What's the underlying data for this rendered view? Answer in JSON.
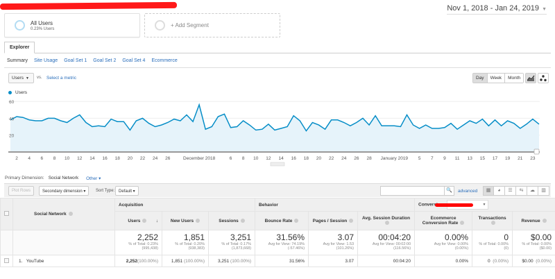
{
  "header": {
    "date_range": "Nov 1, 2018 - Jan 24, 2019",
    "date_caret": "▼"
  },
  "segments": [
    {
      "title": "All Users",
      "subtitle": "0.23% Users"
    },
    {
      "title": "+ Add Segment"
    }
  ],
  "tabs": {
    "explorer": "Explorer"
  },
  "subtabs": [
    "Summary",
    "Site Usage",
    "Goal Set 1",
    "Goal Set 2",
    "Goal Set 4",
    "Ecommerce"
  ],
  "chart_controls": {
    "metric": "Users",
    "metric_caret": "▼",
    "vs": "vs.",
    "select_metric": "Select a metric",
    "legend": "Users",
    "granularity": [
      "Day",
      "Week",
      "Month"
    ],
    "active_granularity": "Day"
  },
  "chart_data": {
    "type": "area",
    "title": "",
    "series": [
      {
        "name": "Users",
        "color": "#058dc7",
        "values": [
          38,
          42,
          41,
          38,
          37,
          37,
          40,
          40,
          37,
          35,
          40,
          44,
          35,
          30,
          31,
          30,
          39,
          36,
          36,
          26,
          37,
          40,
          34,
          30,
          32,
          35,
          39,
          37,
          44,
          36,
          56,
          27,
          30,
          42,
          45,
          29,
          30,
          37,
          32,
          26,
          27,
          33,
          26,
          28,
          30,
          43,
          37,
          25,
          35,
          32,
          27,
          38,
          38,
          35,
          31,
          35,
          40,
          32,
          43,
          31,
          31,
          31,
          30,
          44,
          32,
          28,
          32,
          28,
          28,
          29,
          34,
          27,
          32,
          37,
          34,
          39,
          31,
          38,
          31,
          37,
          34,
          28,
          33,
          39,
          33
        ]
      }
    ],
    "x_tick_labels": [
      "2",
      "4",
      "6",
      "8",
      "10",
      "12",
      "14",
      "16",
      "18",
      "20",
      "22",
      "24",
      "26",
      "December 2018",
      "6",
      "8",
      "10",
      "12",
      "14",
      "16",
      "18",
      "20",
      "22",
      "24",
      "26",
      "28",
      "January 2019",
      "5",
      "7",
      "9",
      "11",
      "13",
      "15",
      "17",
      "19",
      "21",
      "23"
    ],
    "y_tick_labels": [
      "20",
      "40",
      "60"
    ],
    "ylim": [
      0,
      65
    ],
    "grid": true,
    "xlabel": "",
    "ylabel": ""
  },
  "table_controls": {
    "primary_dimension_label": "Primary Dimension:",
    "primary_dimension": "Social Network",
    "other": "Other ▾",
    "plot_rows": "Plot Rows",
    "secondary_dimension": "Secondary dimension ▾",
    "sort_type_label": "Sort Type:",
    "sort_type": "Default ▾",
    "search_value": "",
    "advanced": "advanced"
  },
  "table": {
    "dimension_header": "Social Network",
    "groups": {
      "acquisition": "Acquisition",
      "behavior": "Behavior",
      "conversions": "Conversions"
    },
    "columns": [
      "Users",
      "New Users",
      "Sessions",
      "Bounce Rate",
      "Pages / Session",
      "Avg. Session Duration",
      "Ecommerce Conversion Rate",
      "Transactions",
      "Revenue"
    ],
    "sort_arrow": "↓",
    "totals": [
      {
        "big": "2,252",
        "l1": "% of Total: 0.23%",
        "l2": "(995,438)"
      },
      {
        "big": "1,851",
        "l1": "% of Total: 0.20%",
        "l2": "(938,383)"
      },
      {
        "big": "3,251",
        "l1": "% of Total: 0.17%",
        "l2": "(1,873,668)"
      },
      {
        "big": "31.56%",
        "l1": "Avg for View: 74.19%",
        "l2": "(-57.46%)"
      },
      {
        "big": "3.07",
        "l1": "Avg for View: 1.53",
        "l2": "(101.26%)"
      },
      {
        "big": "00:04:20",
        "l1": "Avg for View: 00:02:00",
        "l2": "(116.56%)"
      },
      {
        "big": "0.00%",
        "l1": "Avg for View: 0.00%",
        "l2": "(0.00%)"
      },
      {
        "big": "0",
        "l1": "% of Total: 0.00%",
        "l2": "(0)"
      },
      {
        "big": "$0.00",
        "l1": "% of Total: 0.00%",
        "l2": "($0.00)"
      }
    ],
    "rows": [
      {
        "index": "1.",
        "name": "YouTube",
        "cells": [
          {
            "v": "2,252",
            "p": "(100.00%)"
          },
          {
            "v": "1,851",
            "p": "(100.00%)"
          },
          {
            "v": "3,251",
            "p": "(100.00%)"
          },
          {
            "v": "31.56%",
            "p": ""
          },
          {
            "v": "3.07",
            "p": ""
          },
          {
            "v": "00:04:20",
            "p": ""
          },
          {
            "v": "0.00%",
            "p": ""
          },
          {
            "v": "0",
            "p": "(0.00%)"
          },
          {
            "v": "$0.00",
            "p": "(0.00%)"
          }
        ]
      }
    ]
  }
}
